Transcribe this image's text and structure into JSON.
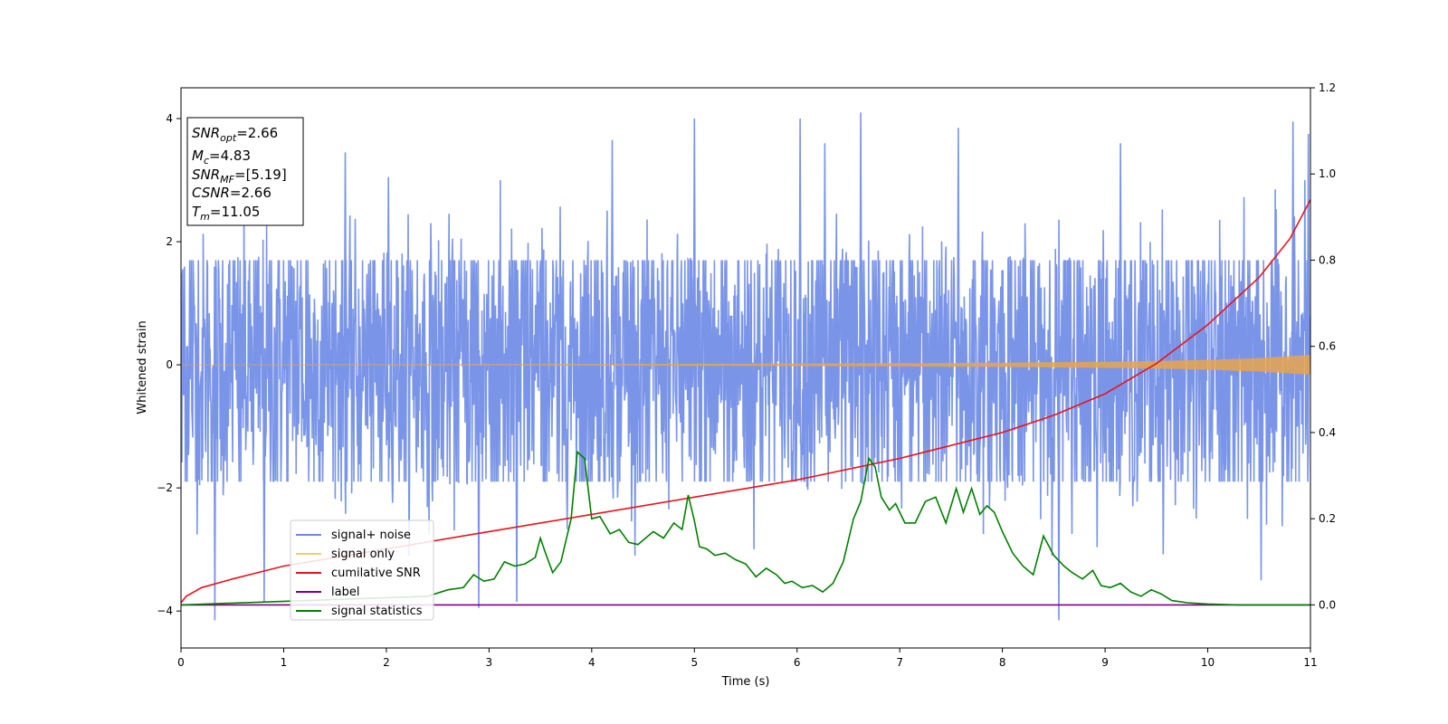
{
  "chart_data": {
    "type": "line",
    "title": "",
    "xlabel": "Time (s)",
    "ylabel_left": "Whitened strain",
    "ylabel_right": "",
    "xlim": [
      0,
      11
    ],
    "ylim_left": [
      -4.6,
      4.5
    ],
    "ylim_right": [
      -0.1,
      1.2
    ],
    "x_ticks": [
      "0",
      "1",
      "2",
      "3",
      "4",
      "5",
      "6",
      "7",
      "8",
      "9",
      "10",
      "11"
    ],
    "y_left_ticks": [
      "−4",
      "−2",
      "0",
      "2",
      "4"
    ],
    "y_right_ticks": [
      "0.0",
      "0.2",
      "0.4",
      "0.6",
      "0.8",
      "1.0",
      "1.2"
    ],
    "grid": false,
    "legend_position": "lower-left",
    "annotation": {
      "lines": [
        {
          "main": "SNR",
          "sub": "opt",
          "value": "=2.66"
        },
        {
          "main": "M",
          "sub": "c",
          "value": "=4.83"
        },
        {
          "main": "SNR",
          "sub": "MF",
          "value": "=[5.19]"
        },
        {
          "main": "CSNR",
          "sub": "",
          "value": "=2.66"
        },
        {
          "main": "T",
          "sub": "m",
          "value": "=11.05"
        }
      ]
    },
    "series": [
      {
        "name": "signal+ noise",
        "axis": "left",
        "color": "#6b8ae6",
        "kind": "noise",
        "x_range": [
          0,
          11
        ],
        "core_range": [
          -1.9,
          1.7
        ],
        "spike_peaks": [
          [
            0.33,
            -4.15
          ],
          [
            0.81,
            -3.85
          ],
          [
            1.6,
            3.45
          ],
          [
            2.02,
            3.05
          ],
          [
            2.9,
            -3.95
          ],
          [
            3.27,
            -3.85
          ],
          [
            4.2,
            3.65
          ],
          [
            5.0,
            4.0
          ],
          [
            6.03,
            4.0
          ],
          [
            6.27,
            3.6
          ],
          [
            6.62,
            4.1
          ],
          [
            7.57,
            3.85
          ],
          [
            8.55,
            -4.15
          ],
          [
            9.15,
            3.6
          ],
          [
            10.52,
            -3.5
          ],
          [
            10.83,
            3.95
          ],
          [
            10.98,
            3.75
          ]
        ]
      },
      {
        "name": "signal only",
        "axis": "left",
        "color": "#e8a44c",
        "kind": "chirp_envelope",
        "x": [
          0,
          2,
          4,
          6,
          7,
          8,
          9,
          9.5,
          10,
          10.5,
          11
        ],
        "amplitude": [
          0.005,
          0.008,
          0.012,
          0.02,
          0.026,
          0.035,
          0.05,
          0.062,
          0.08,
          0.11,
          0.16
        ]
      },
      {
        "name": "cumilative SNR",
        "axis": "right",
        "color": "#e8141c",
        "x": [
          0,
          0.05,
          0.2,
          0.5,
          1,
          2,
          3,
          4,
          5,
          6,
          7,
          8,
          8.5,
          9,
          9.5,
          10,
          10.5,
          10.8,
          11
        ],
        "y": [
          0.005,
          0.02,
          0.04,
          0.06,
          0.09,
          0.13,
          0.17,
          0.21,
          0.25,
          0.29,
          0.34,
          0.4,
          0.44,
          0.49,
          0.56,
          0.65,
          0.76,
          0.85,
          0.94
        ]
      },
      {
        "name": "label",
        "axis": "right",
        "color": "#800080",
        "x": [
          0,
          11
        ],
        "y": [
          0,
          0
        ]
      },
      {
        "name": "signal statistics",
        "axis": "right",
        "color": "#008000",
        "x": [
          0,
          2.4,
          2.6,
          2.75,
          2.85,
          2.95,
          3.05,
          3.15,
          3.25,
          3.35,
          3.45,
          3.5,
          3.55,
          3.62,
          3.7,
          3.8,
          3.86,
          3.93,
          4.0,
          4.08,
          4.18,
          4.27,
          4.36,
          4.45,
          4.6,
          4.7,
          4.8,
          4.88,
          4.94,
          5.0,
          5.05,
          5.12,
          5.2,
          5.3,
          5.4,
          5.5,
          5.6,
          5.7,
          5.8,
          5.88,
          5.95,
          6.05,
          6.15,
          6.25,
          6.35,
          6.45,
          6.55,
          6.62,
          6.7,
          6.76,
          6.82,
          6.9,
          6.96,
          7.05,
          7.15,
          7.25,
          7.35,
          7.45,
          7.55,
          7.62,
          7.7,
          7.78,
          7.85,
          7.92,
          8.0,
          8.1,
          8.2,
          8.3,
          8.4,
          8.5,
          8.6,
          8.68,
          8.78,
          8.88,
          8.96,
          9.05,
          9.15,
          9.25,
          9.35,
          9.45,
          9.55,
          9.65,
          9.8,
          10.0,
          10.3,
          11.0
        ],
        "y": [
          0.0,
          0.02,
          0.035,
          0.04,
          0.07,
          0.055,
          0.06,
          0.1,
          0.09,
          0.095,
          0.11,
          0.155,
          0.12,
          0.075,
          0.1,
          0.2,
          0.355,
          0.34,
          0.2,
          0.205,
          0.165,
          0.175,
          0.145,
          0.14,
          0.17,
          0.155,
          0.19,
          0.175,
          0.255,
          0.195,
          0.135,
          0.13,
          0.115,
          0.12,
          0.105,
          0.095,
          0.065,
          0.085,
          0.07,
          0.05,
          0.055,
          0.04,
          0.045,
          0.03,
          0.05,
          0.1,
          0.2,
          0.24,
          0.34,
          0.32,
          0.25,
          0.22,
          0.235,
          0.19,
          0.19,
          0.24,
          0.25,
          0.19,
          0.27,
          0.215,
          0.27,
          0.21,
          0.23,
          0.215,
          0.17,
          0.12,
          0.09,
          0.07,
          0.16,
          0.115,
          0.09,
          0.075,
          0.06,
          0.08,
          0.045,
          0.04,
          0.05,
          0.03,
          0.02,
          0.035,
          0.025,
          0.01,
          0.005,
          0.002,
          0.0,
          0.0
        ]
      }
    ]
  }
}
